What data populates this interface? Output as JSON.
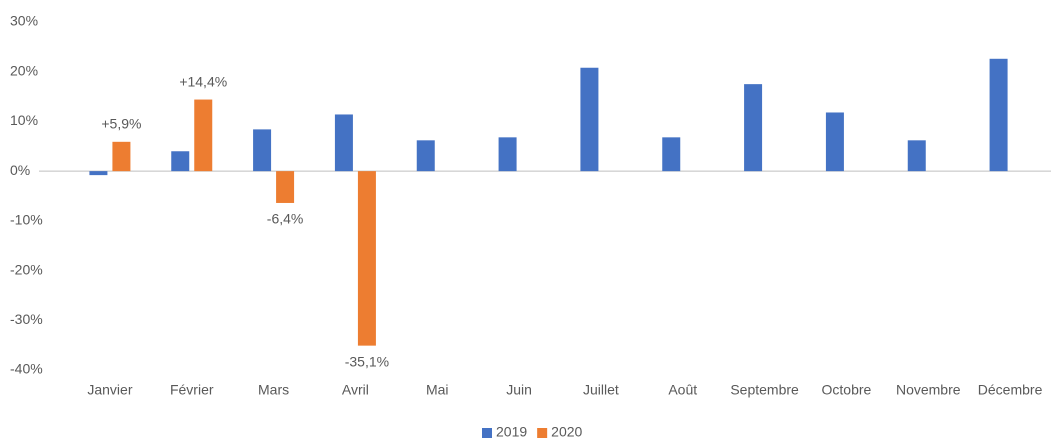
{
  "chart_data": {
    "type": "bar",
    "categories": [
      "Janvier",
      "Février",
      "Mars",
      "Avril",
      "Mai",
      "Juin",
      "Juillet",
      "Août",
      "Septembre",
      "Octobre",
      "Novembre",
      "Décembre"
    ],
    "series": [
      {
        "name": "2019",
        "color": "#4472c4",
        "values": [
          -0.8,
          4.0,
          8.4,
          11.4,
          6.2,
          6.8,
          20.8,
          6.8,
          17.5,
          11.8,
          6.2,
          22.6
        ]
      },
      {
        "name": "2020",
        "color": "#ed7d31",
        "values": [
          5.9,
          14.4,
          -6.4,
          -35.1,
          null,
          null,
          null,
          null,
          null,
          null,
          null,
          null
        ],
        "value_labels": [
          "+5,9%",
          "+14,4%",
          "-6,4%",
          "-35,1%",
          null,
          null,
          null,
          null,
          null,
          null,
          null,
          null
        ]
      }
    ],
    "ylim": [
      -40,
      30
    ],
    "yticks": [
      {
        "value": -40,
        "label": "-40%"
      },
      {
        "value": -30,
        "label": "-30%"
      },
      {
        "value": -20,
        "label": "-20%"
      },
      {
        "value": -10,
        "label": "-10%"
      },
      {
        "value": 0,
        "label": "0%"
      },
      {
        "value": 10,
        "label": "10%"
      },
      {
        "value": 20,
        "label": "20%"
      },
      {
        "value": 30,
        "label": "30%"
      }
    ],
    "grid": false,
    "legend": "bottom"
  }
}
